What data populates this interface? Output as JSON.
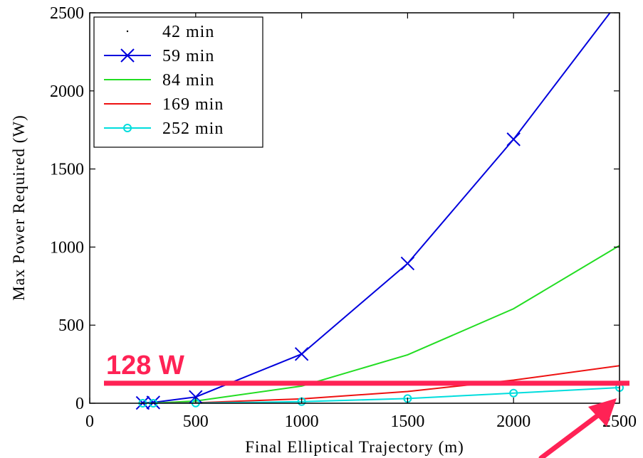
{
  "chart_data": {
    "type": "line",
    "title": "",
    "xlabel": "Final Elliptical Trajectory (m)",
    "ylabel": "Max Power Required (W)",
    "xlim": [
      0,
      2500
    ],
    "ylim": [
      0,
      2500
    ],
    "xticks": [
      "0",
      "500",
      "1000",
      "1500",
      "2000",
      "2500"
    ],
    "yticks": [
      "0",
      "500",
      "1000",
      "1500",
      "2000",
      "2500"
    ],
    "grid": false,
    "legend_position": "top-left",
    "series": [
      {
        "name": "42 min",
        "color": "#000000",
        "marker": "dot",
        "line": false,
        "x": [],
        "y": []
      },
      {
        "name": "59 min",
        "color": "#0000dd",
        "marker": "x",
        "line": true,
        "x": [
          250,
          300,
          500,
          1000,
          1500,
          2000,
          2500
        ],
        "y": [
          2,
          5,
          40,
          315,
          895,
          1690,
          2580
        ]
      },
      {
        "name": "84 min",
        "color": "#22dd22",
        "marker": "none",
        "line": true,
        "x": [
          250,
          300,
          500,
          1000,
          1500,
          2000,
          2500
        ],
        "y": [
          0,
          1,
          14,
          110,
          310,
          605,
          1010
        ]
      },
      {
        "name": "169 min",
        "color": "#ee1111",
        "marker": "none",
        "line": true,
        "x": [
          250,
          300,
          500,
          1000,
          1500,
          2000,
          2500
        ],
        "y": [
          0,
          0,
          3,
          28,
          75,
          148,
          240
        ]
      },
      {
        "name": "252 min",
        "color": "#00dddd",
        "marker": "circle",
        "line": true,
        "x": [
          250,
          300,
          500,
          1000,
          1500,
          2000,
          2500
        ],
        "y": [
          0,
          0,
          1,
          10,
          30,
          65,
          100
        ]
      }
    ],
    "annotations": [
      {
        "text": "128 W",
        "y": 128,
        "color": "#ff2255"
      }
    ]
  }
}
